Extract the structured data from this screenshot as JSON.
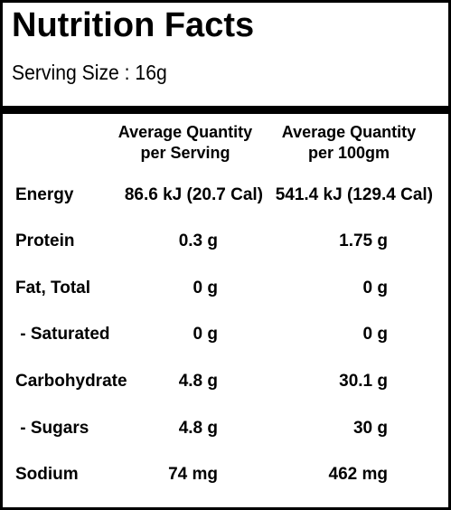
{
  "panel": {
    "title": "Nutrition Facts",
    "serving_size": "Serving Size : 16g"
  },
  "table": {
    "headers": [
      "Average Quantity\nper Serving",
      "Average Quantity\nper 100gm"
    ],
    "rows": [
      {
        "label": "Energy",
        "per_serving": "86.6 kJ (20.7 Cal)",
        "per_100g": "541.4 kJ (129.4 Cal)"
      },
      {
        "label": "Protein",
        "per_serving": "0.3 g",
        "per_100g": "1.75 g"
      },
      {
        "label": "Fat, Total",
        "per_serving": "0 g",
        "per_100g": "0 g"
      },
      {
        "label": " - Saturated",
        "per_serving": "0 g",
        "per_100g": "0 g"
      },
      {
        "label": "Carbohydrate",
        "per_serving": "4.8 g",
        "per_100g": "30.1 g"
      },
      {
        "label": " - Sugars",
        "per_serving": "4.8 g",
        "per_100g": "30 g"
      },
      {
        "label": "Sodium",
        "per_serving": "74 mg",
        "per_100g": "462 mg"
      }
    ]
  }
}
